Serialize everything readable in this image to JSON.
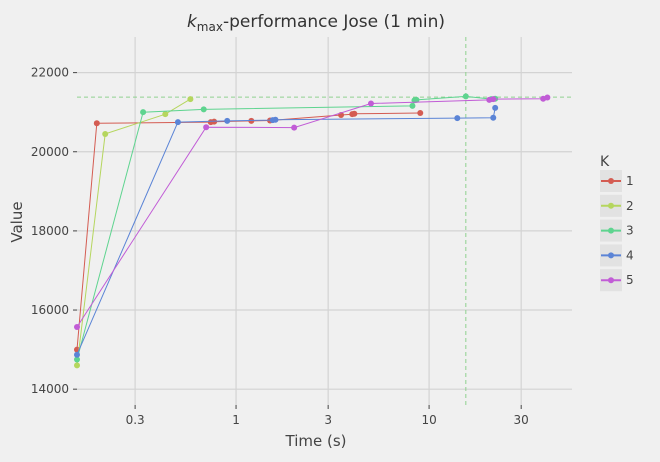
{
  "chart_data": {
    "type": "line",
    "title": "k_max-performance Jose (1 min)",
    "title_parts": {
      "k": "k",
      "sub": "max",
      "rest": "-performance Jose (1 min)"
    },
    "xlabel": "Time (s)",
    "ylabel": "Value",
    "x_scale": "log",
    "xlim": [
      0.15,
      55
    ],
    "ylim": [
      13600,
      22900
    ],
    "x_ticks": [
      {
        "value": 0.3,
        "label": "0.3"
      },
      {
        "value": 1,
        "label": "1"
      },
      {
        "value": 3,
        "label": "3"
      },
      {
        "value": 10,
        "label": "10"
      },
      {
        "value": 30,
        "label": "30"
      }
    ],
    "y_ticks": [
      {
        "value": 14000,
        "label": "14000"
      },
      {
        "value": 16000,
        "label": "16000"
      },
      {
        "value": 18000,
        "label": "18000"
      },
      {
        "value": 20000,
        "label": "20000"
      },
      {
        "value": 22000,
        "label": "22000"
      }
    ],
    "reference_lines": {
      "x": 15.5,
      "y": 21380,
      "color": "#8fd18f"
    },
    "legend": {
      "title": "K",
      "position": "right"
    },
    "series": [
      {
        "name": "1",
        "color": "#d45c52",
        "points": [
          [
            0.15,
            15000
          ],
          [
            0.19,
            20720
          ],
          [
            0.74,
            20750
          ],
          [
            0.77,
            20760
          ],
          [
            1.2,
            20780
          ],
          [
            1.5,
            20790
          ],
          [
            3.5,
            20930
          ],
          [
            4.0,
            20950
          ],
          [
            4.1,
            20960
          ],
          [
            9.0,
            20980
          ]
        ]
      },
      {
        "name": "2",
        "color": "#b5d65e",
        "points": [
          [
            0.15,
            14600
          ],
          [
            0.21,
            20450
          ],
          [
            0.43,
            20950
          ],
          [
            0.58,
            21330
          ]
        ]
      },
      {
        "name": "3",
        "color": "#5ed48f",
        "points": [
          [
            0.15,
            14750
          ],
          [
            0.33,
            21000
          ],
          [
            0.68,
            21070
          ],
          [
            8.2,
            21160
          ],
          [
            8.4,
            21300
          ],
          [
            8.6,
            21310
          ],
          [
            15.5,
            21400
          ],
          [
            21,
            21330
          ],
          [
            22,
            21340
          ]
        ]
      },
      {
        "name": "4",
        "color": "#5b84d6",
        "points": [
          [
            0.15,
            14870
          ],
          [
            0.5,
            20750
          ],
          [
            0.9,
            20780
          ],
          [
            1.55,
            20800
          ],
          [
            1.6,
            20810
          ],
          [
            14,
            20850
          ],
          [
            21.5,
            20860
          ],
          [
            22,
            21110
          ]
        ]
      },
      {
        "name": "5",
        "color": "#c15cd6",
        "points": [
          [
            0.15,
            15570
          ],
          [
            0.7,
            20620
          ],
          [
            2.0,
            20610
          ],
          [
            5.0,
            21220
          ],
          [
            20.5,
            21310
          ],
          [
            21.5,
            21330
          ],
          [
            39,
            21340
          ],
          [
            41,
            21370
          ]
        ]
      }
    ]
  }
}
